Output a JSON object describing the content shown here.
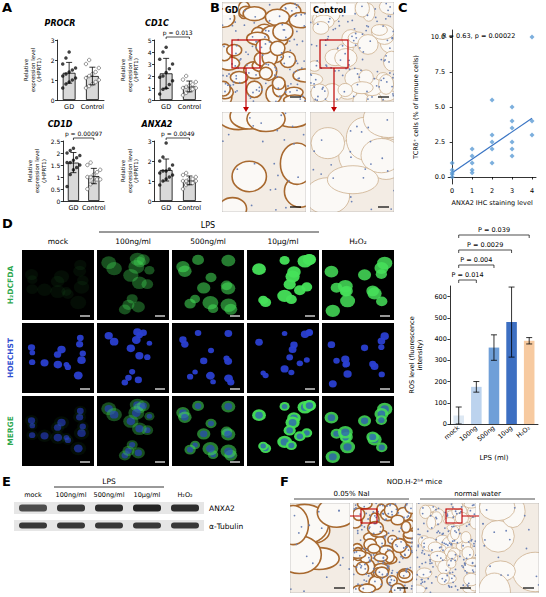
{
  "chart_data": [
    {
      "panel": "A",
      "type": "bar",
      "title": "PROCR",
      "categories": [
        "GD",
        "Control"
      ],
      "values": [
        1.36,
        1.2
      ],
      "errors": [
        0.52,
        0.44
      ],
      "points": [
        [
          0.6,
          0.8,
          0.9,
          1.0,
          1.1,
          1.2,
          1.3,
          1.4,
          1.5,
          1.6,
          1.8,
          2.1,
          2.4
        ],
        [
          0.6,
          0.7,
          0.8,
          0.9,
          1.0,
          1.1,
          1.2,
          1.3,
          1.4,
          1.6,
          1.8,
          2.0
        ]
      ],
      "y_label": "Relative expression level (/HPRT1)",
      "ylim": [
        0,
        3
      ],
      "yticks": [
        0,
        1,
        2,
        3
      ],
      "color": "#d9d9d9"
    },
    {
      "panel": "A",
      "type": "bar",
      "title": "CD1C",
      "categories": [
        "GD",
        "Control"
      ],
      "values": [
        2.22,
        1.13
      ],
      "errors": [
        1.25,
        0.45
      ],
      "points": [
        [
          0.5,
          0.9,
          1.0,
          1.3,
          1.6,
          1.9,
          2.0,
          2.3,
          2.6,
          3.0,
          3.4,
          4.0,
          4.4
        ],
        [
          0.4,
          0.6,
          0.8,
          0.9,
          1.0,
          1.0,
          1.1,
          1.2,
          1.3,
          1.5,
          1.7,
          2.0
        ]
      ],
      "y_label": "Relative expression level (/HPRT1)",
      "ylim": [
        0,
        5
      ],
      "yticks": [
        0,
        1,
        2,
        3,
        4,
        5
      ],
      "color": "#d9d9d9",
      "annotation": "p = 0.013"
    },
    {
      "panel": "A",
      "type": "bar",
      "title": "CD1D",
      "categories": [
        "GD",
        "Control"
      ],
      "values": [
        1.6,
        1.04
      ],
      "errors": [
        0.42,
        0.32
      ],
      "points": [
        [
          0.6,
          1.1,
          1.3,
          1.4,
          1.5,
          1.6,
          1.6,
          1.7,
          1.8,
          1.9,
          2.0,
          2.1,
          2.2
        ],
        [
          0.5,
          0.7,
          0.8,
          0.9,
          0.9,
          1.0,
          1.0,
          1.1,
          1.2,
          1.3,
          1.5,
          1.6
        ]
      ],
      "y_label": "Relative expression level (/HPRT1)",
      "ylim": [
        0,
        2.5
      ],
      "yticks": [
        0,
        0.5,
        1,
        1.5,
        2,
        2.5
      ],
      "color": "#d9d9d9",
      "annotation": "p = 0.00097"
    },
    {
      "panel": "A",
      "type": "bar",
      "title": "ANXA2",
      "categories": [
        "GD",
        "Control"
      ],
      "values": [
        1.55,
        1.03
      ],
      "errors": [
        0.55,
        0.22
      ],
      "points": [
        [
          0.8,
          1.0,
          1.1,
          1.2,
          1.3,
          1.4,
          1.5,
          1.5,
          1.6,
          1.8,
          2.0,
          2.2,
          2.9
        ],
        [
          0.6,
          0.8,
          0.9,
          0.9,
          1.0,
          1.0,
          1.0,
          1.1,
          1.1,
          1.2,
          1.3,
          1.4
        ]
      ],
      "y_label": "Relative expression level (/HPRT1)",
      "ylim": [
        0,
        3
      ],
      "yticks": [
        0,
        1,
        2,
        3
      ],
      "color": "#d9d9d9",
      "annotation": "p = 0.0049"
    },
    {
      "panel": "C",
      "type": "scatter",
      "x": [
        0,
        0,
        0,
        0,
        0,
        1,
        1,
        1,
        1,
        1,
        2,
        2,
        2,
        2,
        2,
        3,
        3,
        3,
        3,
        3,
        3,
        4,
        4,
        4
      ],
      "values": [
        0,
        0.3,
        0.5,
        1,
        0.2,
        0.5,
        1,
        1.5,
        0.3,
        2,
        2,
        5.5,
        1,
        2.5,
        3,
        1.5,
        2,
        3.5,
        4,
        2.5,
        5,
        3,
        4,
        10
      ],
      "fit": {
        "x": [
          0,
          4
        ],
        "values": [
          0.3,
          4.2
        ],
        "color": "#3a75c4"
      },
      "color": "#5b9bd5",
      "marker": "diamond",
      "annotation": "R = 0.63, p = 0.00022",
      "x_label": "ANXA2 IHC staining level",
      "y_label": "TCRδ⁺ cells (% of immune cells)",
      "xlim": [
        -0.2,
        4.2
      ],
      "xticks": [
        0,
        1,
        2,
        3,
        4
      ],
      "ylim": [
        -0.5,
        10.5
      ],
      "yticks": [
        {
          "value": 0,
          "label": "0.0"
        },
        {
          "value": 2.5,
          "label": "2.5"
        },
        {
          "value": 5,
          "label": "5.0"
        },
        {
          "value": 7.5,
          "label": "7.5"
        },
        {
          "value": 10,
          "label": "10.0"
        }
      ]
    },
    {
      "panel": "D",
      "type": "bar",
      "categories": [
        "mock",
        "100ng",
        "500ng",
        "10ug",
        "H₂O₂"
      ],
      "values": [
        40,
        175,
        360,
        480,
        392
      ],
      "errors": [
        40,
        25,
        60,
        165,
        15
      ],
      "colors": [
        "#dde8f3",
        "#bcd3ee",
        "#6f9fd8",
        "#3d6fc2",
        "#f7caa0"
      ],
      "x_label": "LPS (ml)",
      "y_label": "ROS level (fluorescence intensity)",
      "ylim": [
        0,
        650
      ],
      "yticks": [
        0,
        100,
        200,
        300,
        400,
        500,
        600
      ],
      "comparisons": [
        {
          "from": "mock",
          "to": "100ng",
          "label": "P = 0.014"
        },
        {
          "from": "mock",
          "to": "500ng",
          "label": "P = 0.004"
        },
        {
          "from": "mock",
          "to": "10ug",
          "label": "P = 0.0029"
        },
        {
          "from": "mock",
          "to": "H₂O₂",
          "label": "P = 0.039"
        }
      ]
    }
  ],
  "figures": [
    {
      "panel": "B",
      "type": "ihc",
      "labels": [
        "GD",
        "Control"
      ]
    },
    {
      "panel": "D",
      "type": "fluorescence",
      "group": "LPS",
      "columns": [
        "mock",
        "100ng/ml",
        "500ng/ml",
        "10μg/ml",
        "H₂O₂"
      ],
      "rows": [
        "H₂DCFDA",
        "HOECHST",
        "MERGE"
      ]
    },
    {
      "panel": "E",
      "type": "blot",
      "group": "LPS",
      "columns": [
        "mock",
        "100ng/ml",
        "500ng/ml",
        "10μg/ml",
        "H₂O₂"
      ],
      "rows": [
        "ANXA2",
        "α-Tubulin"
      ]
    },
    {
      "panel": "F",
      "type": "ihc_pair",
      "title": "NOD.H-2ʰ⁴ mice",
      "labels": [
        "0.05% NaI",
        "normal water"
      ]
    }
  ]
}
